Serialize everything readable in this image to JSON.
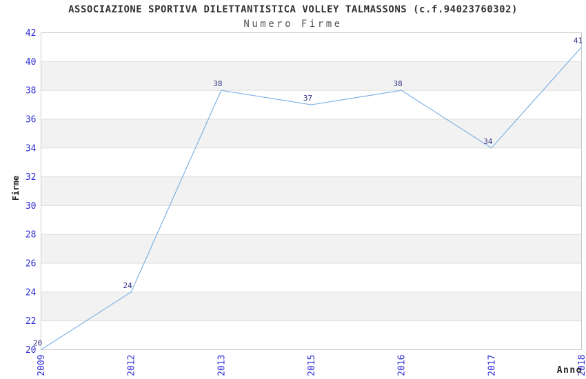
{
  "header": {
    "title": "ASSOCIAZIONE SPORTIVA DILETTANTISTICA VOLLEY TALMASSONS (c.f.94023760302)",
    "subtitle": "Numero Firme"
  },
  "chart_data": {
    "type": "line",
    "x": [
      "2009",
      "2012",
      "2013",
      "2015",
      "2016",
      "2017",
      "2018"
    ],
    "values": [
      20,
      24,
      38,
      37,
      38,
      34,
      41
    ],
    "point_labels": [
      "20",
      "24",
      "38",
      "37",
      "38",
      "34",
      "41"
    ],
    "title": "ASSOCIAZIONE SPORTIVA DILETTANTISTICA VOLLEY TALMASSONS (c.f.94023760302)",
    "subtitle": "Numero Firme",
    "xlabel": "Anno",
    "ylabel": "Firme",
    "ylim": [
      20,
      42
    ],
    "ytick_step": 2,
    "y_ticks": [
      20,
      22,
      24,
      26,
      28,
      30,
      32,
      34,
      36,
      38,
      40,
      42
    ],
    "x_tick_rotation": -90,
    "grid": "horizontal-bands-alternating",
    "legend": "none",
    "colors": {
      "line": "#7fb2e5",
      "tick_label": "#2e2ed6",
      "point_label": "#333387",
      "band": "#f2f2f2",
      "gridline": "#dcdcdc",
      "border": "#c9c9c9",
      "title": "#333333",
      "subtitle": "#555555",
      "axis_title": "#222222",
      "background": "#ffffff"
    }
  }
}
